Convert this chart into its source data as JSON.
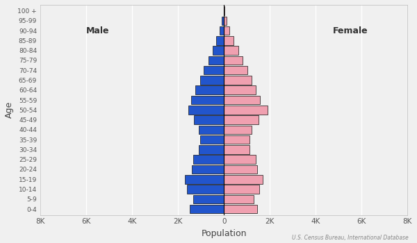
{
  "xlabel": "Population",
  "ylabel": "Age",
  "source": "U.S. Census Bureau, International Database",
  "age_groups": [
    "0-4",
    "5-9",
    "10-14",
    "15-19",
    "20-24",
    "25-29",
    "30-34",
    "35-39",
    "40-44",
    "45-49",
    "50-54",
    "55-59",
    "60-64",
    "65-69",
    "70-74",
    "75-79",
    "80-84",
    "85-89",
    "90-94",
    "95-99",
    "100 +"
  ],
  "male": [
    1500,
    1350,
    1600,
    1700,
    1400,
    1350,
    1100,
    1050,
    1100,
    1300,
    1550,
    1420,
    1250,
    1050,
    870,
    680,
    500,
    340,
    180,
    90,
    20
  ],
  "female": [
    1450,
    1300,
    1550,
    1700,
    1450,
    1400,
    1100,
    1100,
    1200,
    1500,
    1900,
    1580,
    1400,
    1200,
    1020,
    820,
    620,
    430,
    250,
    130,
    35
  ],
  "male_color": "#2255cc",
  "female_color": "#f0a0b0",
  "bar_edgecolor": "#111111",
  "bar_linewidth": 0.5,
  "male_label": "Male",
  "female_label": "Female",
  "xlim": 8000,
  "xticks": [
    -8000,
    -6000,
    -4000,
    -2000,
    0,
    2000,
    4000,
    6000,
    8000
  ],
  "xtick_labels": [
    "8K",
    "6K",
    "4K",
    "2K",
    "0",
    "2K",
    "4K",
    "6K",
    "8K"
  ],
  "background_color": "#f0f0f0",
  "spine_color": "#bbbbbb",
  "grid_color": "#ffffff"
}
